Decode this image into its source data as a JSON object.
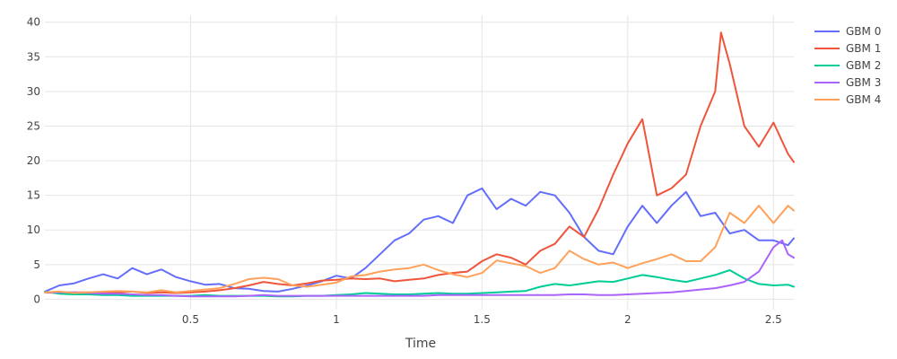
{
  "chart_data": {
    "type": "line",
    "title": "",
    "xlabel": "Time",
    "ylabel": "",
    "xlim": [
      0,
      2.57
    ],
    "ylim": [
      -1.5,
      41
    ],
    "x_ticks": [
      0.5,
      1,
      1.5,
      2,
      2.5
    ],
    "x_tick_labels": [
      "0.5",
      "1",
      "1.5",
      "2",
      "2.5"
    ],
    "y_ticks": [
      0,
      5,
      10,
      15,
      20,
      25,
      30,
      35,
      40
    ],
    "y_tick_labels": [
      "0",
      "5",
      "10",
      "15",
      "20",
      "25",
      "30",
      "35",
      "40"
    ],
    "grid": true,
    "legend_position": "top-right",
    "series": [
      {
        "name": "GBM 0",
        "color": "#636efa",
        "x": [
          0,
          0.05,
          0.1,
          0.15,
          0.2,
          0.25,
          0.3,
          0.35,
          0.4,
          0.45,
          0.5,
          0.55,
          0.6,
          0.65,
          0.7,
          0.75,
          0.8,
          0.85,
          0.9,
          0.95,
          1.0,
          1.05,
          1.1,
          1.15,
          1.2,
          1.25,
          1.3,
          1.35,
          1.4,
          1.45,
          1.5,
          1.55,
          1.6,
          1.65,
          1.7,
          1.75,
          1.8,
          1.85,
          1.9,
          1.95,
          2.0,
          2.05,
          2.1,
          2.15,
          2.2,
          2.25,
          2.3,
          2.35,
          2.4,
          2.45,
          2.5,
          2.55,
          2.57
        ],
        "y": [
          1.1,
          2.0,
          2.3,
          3.0,
          3.6,
          3.0,
          4.5,
          3.6,
          4.3,
          3.2,
          2.6,
          2.1,
          2.2,
          1.6,
          1.5,
          1.2,
          1.1,
          1.5,
          2.0,
          2.6,
          3.4,
          3.0,
          4.5,
          6.5,
          8.5,
          9.5,
          11.5,
          12.0,
          11.0,
          15.0,
          16.0,
          13.0,
          14.5,
          13.5,
          15.5,
          15.0,
          12.5,
          9.0,
          7.0,
          6.5,
          10.5,
          13.5,
          11.0,
          13.5,
          15.5,
          12.0,
          12.5,
          9.5,
          10.0,
          8.5,
          8.5,
          7.8,
          8.8
        ]
      },
      {
        "name": "GBM 1",
        "color": "#ef553b",
        "x": [
          0,
          0.05,
          0.1,
          0.15,
          0.2,
          0.25,
          0.3,
          0.35,
          0.4,
          0.45,
          0.5,
          0.55,
          0.6,
          0.65,
          0.7,
          0.75,
          0.8,
          0.85,
          0.9,
          0.95,
          1.0,
          1.05,
          1.1,
          1.15,
          1.2,
          1.25,
          1.3,
          1.35,
          1.4,
          1.45,
          1.5,
          1.55,
          1.6,
          1.65,
          1.7,
          1.75,
          1.8,
          1.85,
          1.9,
          1.95,
          2.0,
          2.05,
          2.1,
          2.15,
          2.2,
          2.25,
          2.3,
          2.32,
          2.35,
          2.4,
          2.45,
          2.5,
          2.55,
          2.57
        ],
        "y": [
          1.0,
          0.9,
          1.0,
          1.0,
          0.9,
          1.0,
          1.1,
          0.9,
          1.0,
          0.9,
          1.0,
          1.1,
          1.3,
          1.6,
          2.0,
          2.5,
          2.2,
          2.0,
          2.3,
          2.7,
          2.8,
          3.0,
          2.9,
          3.0,
          2.6,
          2.8,
          3.0,
          3.5,
          3.8,
          4.0,
          5.5,
          6.5,
          6.0,
          5.0,
          7.0,
          8.0,
          10.5,
          9.0,
          13.0,
          18.0,
          22.5,
          26.0,
          15.0,
          16.0,
          18.0,
          25.0,
          30.0,
          38.5,
          34.0,
          25.0,
          22.0,
          25.5,
          21.0,
          19.8
        ]
      },
      {
        "name": "GBM 2",
        "color": "#00cc96",
        "x": [
          0,
          0.05,
          0.1,
          0.15,
          0.2,
          0.25,
          0.3,
          0.35,
          0.4,
          0.45,
          0.5,
          0.55,
          0.6,
          0.65,
          0.7,
          0.75,
          0.8,
          0.85,
          0.9,
          0.95,
          1.0,
          1.05,
          1.1,
          1.15,
          1.2,
          1.25,
          1.3,
          1.35,
          1.4,
          1.45,
          1.5,
          1.55,
          1.6,
          1.65,
          1.7,
          1.75,
          1.8,
          1.85,
          1.9,
          1.95,
          2.0,
          2.05,
          2.1,
          2.15,
          2.2,
          2.25,
          2.3,
          2.35,
          2.4,
          2.45,
          2.5,
          2.55,
          2.57
        ],
        "y": [
          1.1,
          0.8,
          0.7,
          0.7,
          0.6,
          0.6,
          0.5,
          0.5,
          0.5,
          0.5,
          0.5,
          0.6,
          0.5,
          0.5,
          0.5,
          0.5,
          0.4,
          0.4,
          0.5,
          0.5,
          0.6,
          0.7,
          0.9,
          0.8,
          0.7,
          0.7,
          0.8,
          0.9,
          0.8,
          0.8,
          0.9,
          1.0,
          1.1,
          1.2,
          1.8,
          2.2,
          2.0,
          2.3,
          2.6,
          2.5,
          3.0,
          3.5,
          3.2,
          2.8,
          2.5,
          3.0,
          3.5,
          4.2,
          3.0,
          2.2,
          2.0,
          2.1,
          1.8
        ]
      },
      {
        "name": "GBM 3",
        "color": "#ab63fa",
        "x": [
          0,
          0.05,
          0.1,
          0.15,
          0.2,
          0.25,
          0.3,
          0.35,
          0.4,
          0.45,
          0.5,
          0.55,
          0.6,
          0.65,
          0.7,
          0.75,
          0.8,
          0.85,
          0.9,
          0.95,
          1.0,
          1.05,
          1.1,
          1.15,
          1.2,
          1.25,
          1.3,
          1.35,
          1.4,
          1.45,
          1.5,
          1.55,
          1.6,
          1.65,
          1.7,
          1.75,
          1.8,
          1.85,
          1.9,
          1.95,
          2.0,
          2.05,
          2.1,
          2.15,
          2.2,
          2.25,
          2.3,
          2.35,
          2.4,
          2.45,
          2.5,
          2.53,
          2.55,
          2.57
        ],
        "y": [
          1.0,
          1.0,
          1.0,
          0.9,
          0.8,
          0.8,
          0.7,
          0.6,
          0.6,
          0.5,
          0.4,
          0.4,
          0.4,
          0.4,
          0.5,
          0.6,
          0.5,
          0.5,
          0.5,
          0.5,
          0.5,
          0.5,
          0.5,
          0.5,
          0.5,
          0.5,
          0.5,
          0.6,
          0.6,
          0.6,
          0.6,
          0.6,
          0.6,
          0.6,
          0.6,
          0.6,
          0.7,
          0.7,
          0.6,
          0.6,
          0.7,
          0.8,
          0.9,
          1.0,
          1.2,
          1.4,
          1.6,
          2.0,
          2.5,
          4.0,
          7.5,
          8.5,
          6.5,
          6.0
        ]
      },
      {
        "name": "GBM 4",
        "color": "#ffa15a",
        "x": [
          0,
          0.05,
          0.1,
          0.15,
          0.2,
          0.25,
          0.3,
          0.35,
          0.4,
          0.45,
          0.5,
          0.55,
          0.6,
          0.65,
          0.7,
          0.75,
          0.8,
          0.85,
          0.9,
          0.95,
          1.0,
          1.05,
          1.1,
          1.15,
          1.2,
          1.25,
          1.3,
          1.35,
          1.4,
          1.45,
          1.5,
          1.55,
          1.6,
          1.65,
          1.7,
          1.75,
          1.8,
          1.85,
          1.9,
          1.95,
          2.0,
          2.05,
          2.1,
          2.15,
          2.2,
          2.25,
          2.3,
          2.35,
          2.4,
          2.45,
          2.5,
          2.55,
          2.57
        ],
        "y": [
          1.0,
          1.1,
          0.9,
          1.0,
          1.1,
          1.2,
          1.1,
          1.0,
          1.3,
          1.0,
          1.2,
          1.4,
          1.6,
          2.2,
          2.9,
          3.1,
          2.9,
          2.0,
          1.8,
          2.1,
          2.4,
          3.3,
          3.5,
          4.0,
          4.3,
          4.5,
          5.0,
          4.2,
          3.6,
          3.2,
          3.8,
          5.6,
          5.2,
          4.8,
          3.8,
          4.5,
          7.0,
          5.8,
          5.0,
          5.3,
          4.5,
          5.2,
          5.8,
          6.5,
          5.5,
          5.5,
          7.5,
          12.5,
          11.0,
          13.5,
          11.0,
          13.5,
          12.8
        ]
      }
    ]
  }
}
